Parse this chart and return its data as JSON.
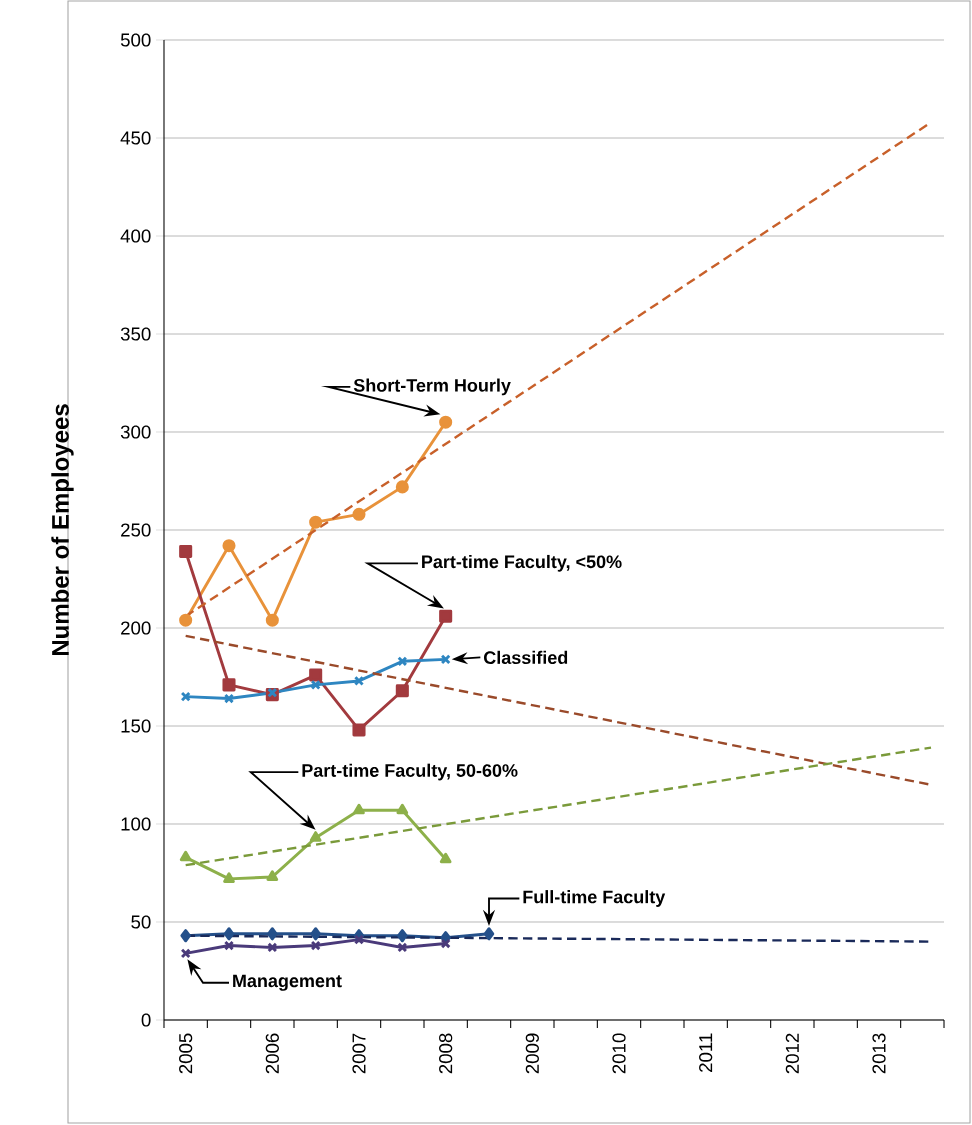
{
  "chart_data": {
    "type": "line",
    "ylabel": "Number of Employees",
    "x": [
      2005,
      2005.5,
      2006,
      2006.5,
      2007,
      2007.5,
      2008
    ],
    "xlim": [
      2004.75,
      2013.75
    ],
    "xticks": [
      2005,
      2006,
      2007,
      2008,
      2009,
      2010,
      2011,
      2012,
      2013,
      {
        "value": 2004.75,
        "label": null
      },
      {
        "value": 2005.25,
        "label": null
      },
      {
        "value": 2005.75,
        "label": null
      },
      {
        "value": 2006.25,
        "label": null
      },
      {
        "value": 2006.75,
        "label": null
      },
      {
        "value": 2007.25,
        "label": null
      },
      {
        "value": 2007.75,
        "label": null
      },
      {
        "value": 2008.25,
        "label": null
      },
      {
        "value": 2008.75,
        "label": null
      },
      {
        "value": 2009.25,
        "label": null
      },
      {
        "value": 2009.75,
        "label": null
      },
      {
        "value": 2010.25,
        "label": null
      },
      {
        "value": 2010.75,
        "label": null
      },
      {
        "value": 2011.25,
        "label": null
      },
      {
        "value": 2011.75,
        "label": null
      },
      {
        "value": 2012.25,
        "label": null
      },
      {
        "value": 2012.75,
        "label": null
      },
      {
        "value": 2013.25,
        "label": null
      },
      {
        "value": 2013.75,
        "label": null
      }
    ],
    "ylim": [
      0,
      500
    ],
    "yticks": [
      0,
      50,
      100,
      150,
      200,
      250,
      300,
      350,
      400,
      450,
      500
    ],
    "grid": "y",
    "series": [
      {
        "name": "Short-Term Hourly",
        "color": "#e8923a",
        "marker": "circle",
        "values": [
          204,
          242,
          204,
          254,
          258,
          272,
          305
        ]
      },
      {
        "name": "Part-time Faculty, <50%",
        "color": "#a23a3e",
        "marker": "square",
        "values": [
          239,
          171,
          166,
          176,
          148,
          168,
          206
        ]
      },
      {
        "name": "Classified",
        "color": "#2e86c1",
        "marker": "cross",
        "values": [
          165,
          164,
          167,
          171,
          173,
          183,
          184
        ]
      },
      {
        "name": "Part-time Faculty, 50-60%",
        "color": "#8db04a",
        "marker": "triangle",
        "values": [
          83,
          72,
          73,
          93,
          107,
          107,
          82
        ]
      },
      {
        "name": "Full-time Faculty",
        "color": "#24508a",
        "marker": "diamond",
        "x": [
          2005,
          2005.5,
          2006,
          2006.5,
          2007,
          2007.5,
          2008,
          2008.5
        ],
        "values": [
          43,
          44,
          44,
          44,
          43,
          43,
          42,
          44
        ]
      },
      {
        "name": "Management",
        "color": "#4a3a7a",
        "marker": "cross",
        "values": [
          34,
          38,
          37,
          38,
          41,
          37,
          39
        ]
      },
      {
        "type": "line",
        "color": "#c8602a",
        "marker": "none",
        "line_style": "dashed",
        "x": [
          2005,
          2013.6
        ],
        "values": [
          206,
          458
        ]
      },
      {
        "type": "line",
        "color": "#9a4a2a",
        "marker": "none",
        "line_style": "dashed",
        "x": [
          2005,
          2013.6
        ],
        "values": [
          196,
          120
        ]
      },
      {
        "type": "line",
        "color": "#7a9a3a",
        "marker": "none",
        "line_style": "dashed",
        "x": [
          2005,
          2013.6
        ],
        "values": [
          79,
          139
        ]
      },
      {
        "type": "line",
        "color": "#1a2a5a",
        "marker": "none",
        "line_style": "dashed",
        "x": [
          2005,
          2013.6
        ],
        "values": [
          43,
          40
        ]
      }
    ]
  }
}
